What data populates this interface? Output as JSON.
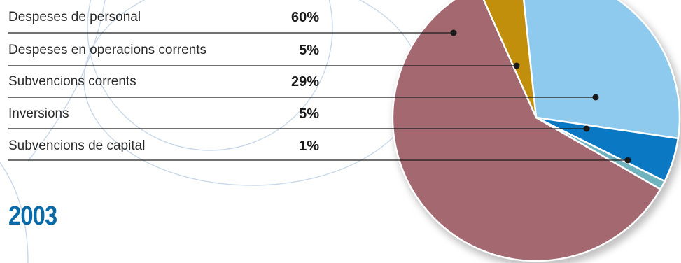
{
  "year_label": "2003",
  "chart_data": {
    "type": "pie",
    "title": "",
    "categories": [
      "Despeses de personal",
      "Despeses en operacions corrents",
      "Subvencions corrents",
      "Inversions",
      "Subvencions de capital"
    ],
    "value_labels": [
      "60%",
      "5%",
      "29%",
      "5%",
      "1%"
    ],
    "values": [
      60,
      5,
      29,
      5,
      1
    ],
    "colors": [
      "#a36870",
      "#c28f0c",
      "#8ecaee",
      "#0a78c2",
      "#6fb3bf"
    ],
    "legend": "left-with-leader-lines"
  }
}
